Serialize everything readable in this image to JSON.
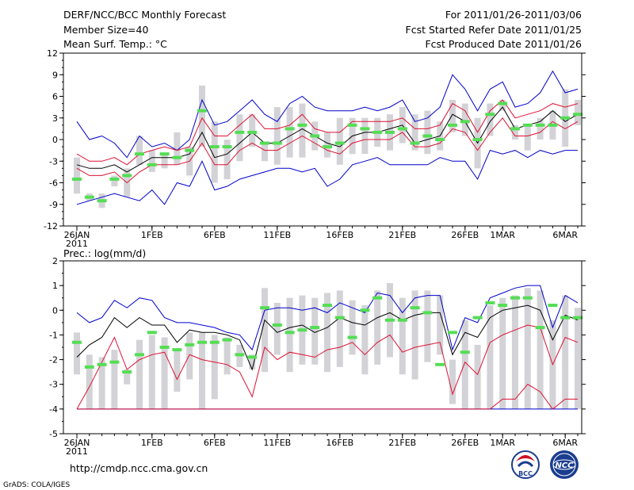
{
  "header": {
    "left": [
      "DERF/NCC/BCC Monthly Forecast",
      "Member Size=40",
      "Mean Surf. Temp.: °C"
    ],
    "right": [
      "For 2011/01/26-2011/03/06",
      "Fcst Started Refer Date 2011/01/25",
      "Fcst Produced Date 2011/01/26"
    ]
  },
  "footer": {
    "url": "http://cmdp.ncc.cma.gov.cn",
    "credit": "GrADS: COLA/IGES",
    "logo_bcc": "BCC",
    "logo_ncc": "NCC"
  },
  "colors": {
    "box": "#d3d3d7",
    "median": "#55dd55",
    "mean": "#000000",
    "sd": "#dd1133",
    "range": "#0000cc"
  },
  "chart_data": [
    {
      "type": "box",
      "title": "Mean Surf. Temp.: °C",
      "xlabels": [
        "26JAN",
        "1FEB",
        "6FEB",
        "11FEB",
        "16FEB",
        "21FEB",
        "26FEB",
        "1MAR",
        "6MAR"
      ],
      "xlabel_days": [
        0,
        6,
        11,
        16,
        21,
        26,
        31,
        34,
        39
      ],
      "xsub": "2011",
      "ylim": [
        -12,
        12
      ],
      "yticks": [
        -12,
        -9,
        -6,
        -3,
        0,
        3,
        6,
        9,
        12
      ],
      "series": {
        "max": [
          2.5,
          0,
          0.5,
          -0.5,
          -2.5,
          0.5,
          -1,
          -0.5,
          -1.5,
          0,
          5.5,
          2,
          2.5,
          4,
          5.5,
          3.5,
          2.5,
          5,
          6,
          4.5,
          4,
          4,
          4,
          4.5,
          4,
          4.5,
          5.5,
          2.5,
          3,
          4.5,
          9,
          7,
          4,
          7,
          8,
          4.5,
          5,
          6.5,
          9.5,
          6.5,
          7
        ],
        "sd_hi": [
          -2,
          -3,
          -3,
          -2.5,
          -3.5,
          -2,
          -1.5,
          -1,
          -1.5,
          -1,
          3,
          0.5,
          0.5,
          2,
          3.5,
          1.5,
          1.5,
          2,
          3.5,
          1.5,
          1,
          1,
          2.5,
          2.5,
          2.5,
          2.5,
          3,
          1.5,
          1.5,
          2,
          5,
          4,
          1,
          4,
          5.5,
          3,
          3.5,
          4,
          5,
          4.5,
          5
        ],
        "mean": [
          -3.5,
          -4,
          -4,
          -3.5,
          -4.5,
          -3.5,
          -2.5,
          -2.5,
          -2.5,
          -2,
          1,
          -2.5,
          -2,
          -0.5,
          1,
          -0.5,
          -0.5,
          0.5,
          1.5,
          0.5,
          -0.5,
          -1,
          0.5,
          1,
          1,
          1.5,
          2,
          -0.5,
          0,
          0.5,
          3.5,
          2.5,
          -0.5,
          2.5,
          4.5,
          1.5,
          2,
          2.5,
          4,
          2.5,
          3.5
        ],
        "sd_lo": [
          -4,
          -5,
          -5,
          -4.5,
          -6,
          -4.5,
          -3.5,
          -3.5,
          -3.5,
          -3,
          -0.5,
          -3.5,
          -3.5,
          -1.5,
          -0.5,
          -1.5,
          -1.5,
          -0.5,
          0.5,
          -0.5,
          -1.5,
          -2,
          -0.5,
          0,
          0,
          0,
          1,
          -1,
          -1,
          -0.5,
          1.5,
          1,
          -1.5,
          1,
          3,
          0.5,
          0.5,
          1,
          2.5,
          1.5,
          2.5
        ],
        "min": [
          -9,
          -8.5,
          -8,
          -7.5,
          -8,
          -8.5,
          -7,
          -9,
          -6,
          -6.5,
          -3,
          -7,
          -6.5,
          -5.5,
          -5,
          -4.5,
          -4,
          -4,
          -4.5,
          -4,
          -6.5,
          -5.5,
          -3.5,
          -3,
          -2.5,
          -3.5,
          -3.5,
          -3.5,
          -3.5,
          -2.5,
          -3,
          -3,
          -5.5,
          -1.5,
          -2,
          -1.5,
          -2.5,
          -1.5,
          -2,
          -1.5,
          -1.5
        ],
        "box_hi": [
          -2.5,
          -7.5,
          -7.5,
          -5,
          -4,
          0.5,
          -1.5,
          -2,
          1,
          -1,
          7.5,
          2.5,
          0,
          3.5,
          3.5,
          -0.5,
          4.5,
          4.5,
          5,
          2.5,
          1,
          3,
          3,
          3,
          3,
          3.5,
          4.5,
          3.5,
          4,
          2.5,
          5.5,
          5,
          3,
          5,
          5.5,
          2,
          2,
          3,
          4,
          7,
          5.5
        ],
        "box_lo": [
          -7.5,
          -8.5,
          -9.5,
          -6.5,
          -8,
          -3.5,
          -4.5,
          -4,
          -3.5,
          -5,
          -1,
          -6,
          -5.5,
          -3,
          -1,
          -3,
          -3.5,
          -2.5,
          -2.5,
          -1.5,
          -2.5,
          -3.5,
          -2,
          -2,
          -1,
          -1.5,
          -0.5,
          -1.5,
          -2,
          -1.5,
          1,
          0.5,
          -4,
          0.5,
          4,
          0,
          -1.5,
          0,
          0,
          -1,
          2
        ],
        "median": [
          -5.5,
          -8,
          -8.5,
          -5.5,
          -5,
          -2,
          -3.5,
          -2,
          -2.5,
          -1.5,
          4,
          -1,
          -1,
          1,
          1,
          -0.5,
          -0.5,
          1.5,
          2,
          0.5,
          -1,
          -0.5,
          2,
          1.5,
          1,
          1,
          1.5,
          -0.5,
          0.5,
          0,
          2,
          2.5,
          0,
          3.5,
          5,
          1.5,
          2,
          2,
          2,
          3,
          3.5
        ]
      }
    },
    {
      "type": "box",
      "title": "Prec.: log(mm/d)",
      "xlabels": [
        "26JAN",
        "1FEB",
        "6FEB",
        "11FEB",
        "16FEB",
        "21FEB",
        "26FEB",
        "1MAR",
        "6MAR"
      ],
      "xlabel_days": [
        0,
        6,
        11,
        16,
        21,
        26,
        31,
        34,
        39
      ],
      "xsub": "2011",
      "ylim": [
        -5,
        2
      ],
      "yticks": [
        -5,
        -4,
        -3,
        -2,
        -1,
        0,
        1,
        2
      ],
      "series": {
        "max": [
          -0.1,
          -0.5,
          -0.3,
          0.4,
          0.1,
          0.5,
          0.4,
          -0.3,
          -0.5,
          -0.5,
          -0.6,
          -0.7,
          -0.9,
          -1,
          -1.6,
          0,
          0.1,
          0.1,
          0,
          0.1,
          -0.1,
          0.3,
          0.1,
          -0.1,
          0.7,
          0.6,
          -0.1,
          0.5,
          0.6,
          0.6,
          -1.6,
          -0.3,
          -0.5,
          0.5,
          0.7,
          0.9,
          1,
          1,
          -0.7,
          0.6,
          0.3
        ],
        "mean": [
          -1.9,
          -1.4,
          -1.1,
          -0.3,
          -0.7,
          -0.3,
          -0.6,
          -0.6,
          -1.3,
          -0.8,
          -0.9,
          -0.9,
          -1,
          -1.2,
          -2.4,
          -0.4,
          -0.9,
          -0.7,
          -0.6,
          -0.9,
          -0.7,
          -0.3,
          -0.5,
          -0.6,
          -0.3,
          -0.1,
          -0.4,
          -0.2,
          -0.1,
          -0.1,
          -1.8,
          -0.9,
          -1.1,
          -0.3,
          0,
          0.1,
          0.2,
          0,
          -1.2,
          -0.2,
          -0.4
        ],
        "sd_lo": [
          -4,
          -3.1,
          -2.1,
          -1.1,
          -2.4,
          -2,
          -1.8,
          -1.7,
          -2.8,
          -1.8,
          -2,
          -2.1,
          -2.2,
          -2.5,
          -3.5,
          -1.5,
          -2,
          -1.7,
          -1.8,
          -1.9,
          -1.6,
          -1.5,
          -1.3,
          -1.8,
          -1.3,
          -1,
          -1.7,
          -1.5,
          -1.4,
          -1.3,
          -3.4,
          -2.1,
          -2.6,
          -1.3,
          -1,
          -0.8,
          -0.6,
          -0.7,
          -2.2,
          -1.1,
          -1.3
        ],
        "min": [
          -4,
          -4,
          -4,
          -4,
          -4,
          -4,
          -4,
          -4,
          -4,
          -4,
          -4,
          -4,
          -4,
          -4,
          -4,
          -4,
          -4,
          -4,
          -4,
          -4,
          -4,
          -4,
          -4,
          -4,
          -4,
          -4,
          -4,
          -4,
          -4,
          -4,
          -4,
          -4,
          -4,
          -4,
          -4,
          -4,
          -4,
          -4,
          -4,
          -4,
          -4
        ],
        "sdlow2": [
          -4,
          -4,
          -4,
          -4,
          -4,
          -4,
          -4,
          -4,
          -4,
          -4,
          -4,
          -4,
          -4,
          -4,
          -4,
          -4,
          -4,
          -4,
          -4,
          -4,
          -4,
          -4,
          -4,
          -4,
          -4,
          -4,
          -4,
          -4,
          -4,
          -4,
          -4,
          -4,
          -4,
          -4,
          -3.6,
          -3.6,
          -3,
          -3.3,
          -4,
          -3.6,
          -3.6
        ],
        "box_hi": [
          -0.9,
          -1.8,
          -1.9,
          -1.6,
          -2.4,
          -1.2,
          -1,
          -1.1,
          -1.6,
          -0.9,
          -0.9,
          -1,
          -1.1,
          -1.4,
          -1.8,
          0.9,
          0.3,
          0.5,
          0.6,
          0.5,
          0.7,
          0.8,
          0.4,
          0.2,
          0.8,
          1.1,
          0.5,
          0.8,
          0.8,
          0.6,
          -2,
          -0.4,
          -1.4,
          0.2,
          0.5,
          0.6,
          0.9,
          0.8,
          -0.4,
          0.6,
          0.1
        ],
        "box_lo": [
          -2.6,
          -4,
          -4,
          -4,
          -3,
          -4,
          -4,
          -4,
          -3.3,
          -2.8,
          -4,
          -3.6,
          -2.6,
          -2.3,
          -2.4,
          -2.5,
          -1.8,
          -2.5,
          -2.2,
          -2.2,
          -2.5,
          -2.3,
          -1.8,
          -2.6,
          -2.2,
          -1.9,
          -2.6,
          -2.8,
          -2.1,
          -1.8,
          -3.8,
          -4,
          -4,
          -4,
          -4,
          -4,
          -4,
          -4,
          -4,
          -4,
          -4
        ],
        "median": [
          -1.3,
          -2.3,
          -2.2,
          -2.1,
          -2.5,
          -1.8,
          -0.9,
          -1.5,
          -1.6,
          -1.4,
          -1.3,
          -1.3,
          -1.2,
          -1.8,
          -1.9,
          0.1,
          -0.6,
          -0.9,
          -0.8,
          -0.7,
          0.2,
          -0.3,
          -1.1,
          0,
          0.5,
          -0.4,
          -0.4,
          0.1,
          -0.1,
          -2.2,
          -0.9,
          -1.7,
          -0.3,
          0.3,
          0.2,
          0.5,
          0.5,
          -0.7,
          0.2,
          -0.3,
          -0.3
        ]
      }
    }
  ]
}
